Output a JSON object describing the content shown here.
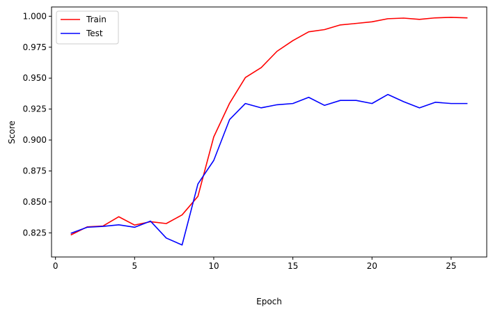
{
  "chart_data": {
    "type": "line",
    "xlabel": "Epoch",
    "ylabel": "Score",
    "xlim": [
      -0.25,
      27.25
    ],
    "ylim": [
      0.8055,
      1.0075
    ],
    "xticks": [
      0,
      5,
      10,
      15,
      20,
      25
    ],
    "yticks": [
      0.825,
      0.85,
      0.875,
      0.9,
      0.925,
      0.95,
      0.975,
      1.0
    ],
    "xtick_labels": [
      "0",
      "5",
      "10",
      "15",
      "20",
      "25"
    ],
    "ytick_labels": [
      "0.825",
      "0.850",
      "0.875",
      "0.900",
      "0.925",
      "0.950",
      "0.975",
      "1.000"
    ],
    "grid": false,
    "legend_position": "top-left",
    "x": [
      1,
      2,
      3,
      4,
      5,
      6,
      7,
      8,
      9,
      10,
      11,
      12,
      13,
      14,
      15,
      16,
      17,
      18,
      19,
      20,
      21,
      22,
      23,
      24,
      25,
      26
    ],
    "series": [
      {
        "name": "Train",
        "color": "#ff0000",
        "values": [
          0.8235,
          0.8298,
          0.8305,
          0.838,
          0.8313,
          0.834,
          0.8325,
          0.8395,
          0.8545,
          0.9025,
          0.9297,
          0.9505,
          0.9585,
          0.9717,
          0.9803,
          0.9874,
          0.9892,
          0.993,
          0.9942,
          0.9955,
          0.998,
          0.9985,
          0.9975,
          0.9987,
          0.9991,
          0.9987
        ]
      },
      {
        "name": "Test",
        "color": "#0000ff",
        "values": [
          0.8248,
          0.8295,
          0.8302,
          0.8315,
          0.8295,
          0.8345,
          0.8208,
          0.8152,
          0.8645,
          0.8835,
          0.9165,
          0.9295,
          0.926,
          0.9285,
          0.9295,
          0.9345,
          0.928,
          0.932,
          0.932,
          0.9295,
          0.9368,
          0.931,
          0.926,
          0.9305,
          0.9295,
          0.9295
        ]
      }
    ]
  }
}
